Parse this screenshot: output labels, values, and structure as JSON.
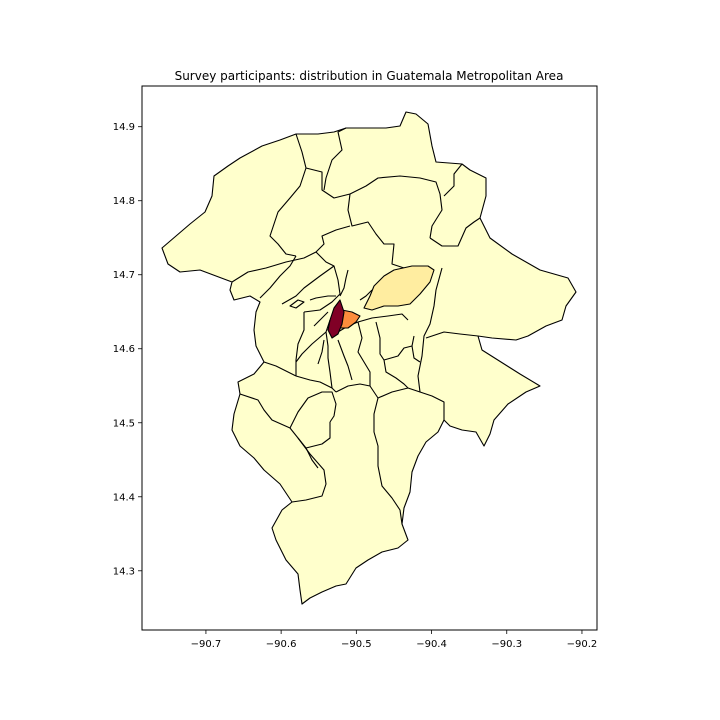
{
  "figure": {
    "title": "Survey participants: distribution in Guatemala Metropolitan Area"
  },
  "chart_data": {
    "type": "choropleth",
    "title": "Survey participants: distribution in Guatemala Metropolitan Area",
    "xlabel": "",
    "ylabel": "",
    "xlim": [
      -90.785,
      -90.18
    ],
    "ylim": [
      14.22,
      14.955
    ],
    "x_ticks": [
      -90.7,
      -90.6,
      -90.5,
      -90.4,
      -90.3,
      -90.2
    ],
    "y_ticks": [
      14.3,
      14.4,
      14.5,
      14.6,
      14.7,
      14.8,
      14.9
    ],
    "x_tick_labels": [
      "−90.7",
      "−90.6",
      "−90.5",
      "−90.4",
      "−90.3",
      "−90.2"
    ],
    "y_tick_labels": [
      "14.3",
      "14.4",
      "14.5",
      "14.6",
      "14.7",
      "14.8",
      "14.9"
    ],
    "colormap": "YlOrRd",
    "colors": {
      "low": "#ffffcc",
      "light": "#ffeda0",
      "medium": "#fd8d3c",
      "high": "#800026"
    },
    "highlighted_zones": [
      {
        "lon": -90.525,
        "lat": 14.635,
        "level": "high"
      },
      {
        "lon": -90.51,
        "lat": 14.638,
        "level": "medium"
      },
      {
        "lon": -90.46,
        "lat": 14.675,
        "level": "light"
      }
    ],
    "grid": false,
    "legend": "none"
  }
}
